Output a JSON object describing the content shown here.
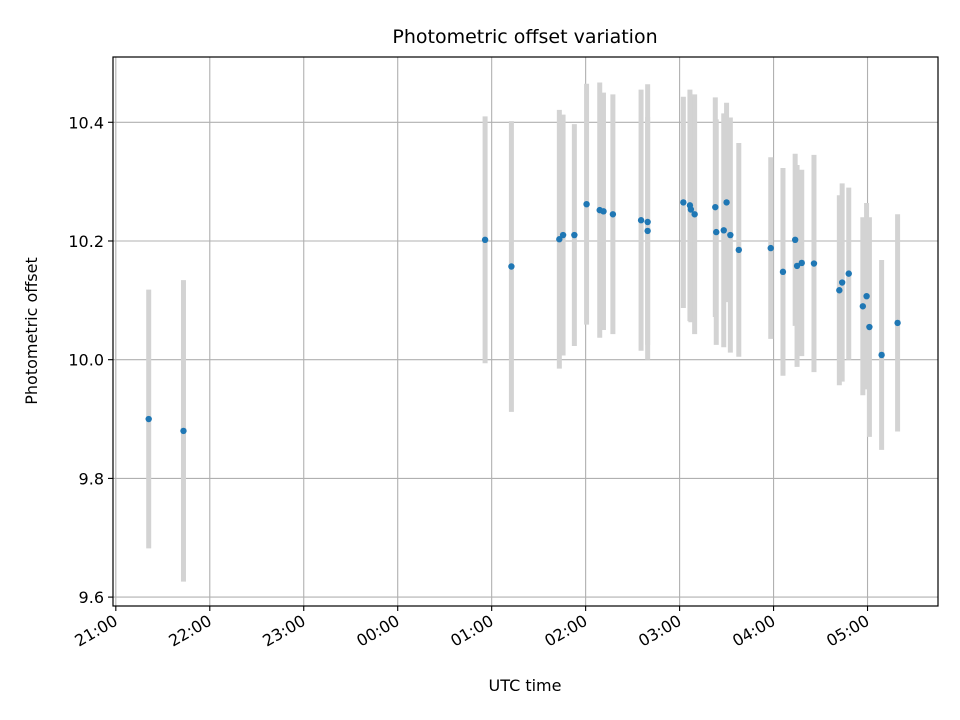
{
  "chart_data": {
    "type": "scatter",
    "title": "Photometric offset variation",
    "xlabel": "UTC time",
    "ylabel": "Photometric offset",
    "x_unit": "UTC hours (21:00 start, values past 24 wrap to next day)",
    "xlim": [
      20.97,
      29.75
    ],
    "ylim": [
      9.585,
      10.51
    ],
    "grid": true,
    "x_ticks": [
      {
        "value": 21,
        "label": "21:00"
      },
      {
        "value": 22,
        "label": "22:00"
      },
      {
        "value": 23,
        "label": "23:00"
      },
      {
        "value": 24,
        "label": "00:00"
      },
      {
        "value": 25,
        "label": "01:00"
      },
      {
        "value": 26,
        "label": "02:00"
      },
      {
        "value": 27,
        "label": "03:00"
      },
      {
        "value": 28,
        "label": "04:00"
      },
      {
        "value": 29,
        "label": "05:00"
      }
    ],
    "y_ticks": [
      {
        "value": 9.6,
        "label": "9.6"
      },
      {
        "value": 9.8,
        "label": "9.8"
      },
      {
        "value": 10.0,
        "label": "10.0"
      },
      {
        "value": 10.2,
        "label": "10.2"
      },
      {
        "value": 10.4,
        "label": "10.4"
      }
    ],
    "colors": {
      "point": "#1f77b4",
      "errorbar": "#d3d3d3",
      "grid": "#b0b0b0"
    },
    "points": [
      {
        "x": 21.35,
        "y": 9.9,
        "err": 0.218
      },
      {
        "x": 21.72,
        "y": 9.88,
        "err": 0.254
      },
      {
        "x": 24.93,
        "y": 10.202,
        "err": 0.208
      },
      {
        "x": 25.21,
        "y": 10.157,
        "err": 0.245
      },
      {
        "x": 25.72,
        "y": 10.203,
        "err": 0.218
      },
      {
        "x": 25.76,
        "y": 10.21,
        "err": 0.203
      },
      {
        "x": 25.88,
        "y": 10.21,
        "err": 0.187
      },
      {
        "x": 26.01,
        "y": 10.262,
        "err": 0.203
      },
      {
        "x": 26.15,
        "y": 10.252,
        "err": 0.215
      },
      {
        "x": 26.19,
        "y": 10.25,
        "err": 0.2
      },
      {
        "x": 26.29,
        "y": 10.245,
        "err": 0.202
      },
      {
        "x": 26.59,
        "y": 10.235,
        "err": 0.22
      },
      {
        "x": 26.66,
        "y": 10.217,
        "err": 0.192
      },
      {
        "x": 26.66,
        "y": 10.232,
        "err": 0.232
      },
      {
        "x": 27.04,
        "y": 10.265,
        "err": 0.178
      },
      {
        "x": 27.11,
        "y": 10.26,
        "err": 0.195
      },
      {
        "x": 27.12,
        "y": 10.253,
        "err": 0.19
      },
      {
        "x": 27.16,
        "y": 10.245,
        "err": 0.202
      },
      {
        "x": 27.38,
        "y": 10.257,
        "err": 0.185
      },
      {
        "x": 27.39,
        "y": 10.215,
        "err": 0.19
      },
      {
        "x": 27.47,
        "y": 10.218,
        "err": 0.197
      },
      {
        "x": 27.5,
        "y": 10.265,
        "err": 0.168
      },
      {
        "x": 27.54,
        "y": 10.21,
        "err": 0.198
      },
      {
        "x": 27.63,
        "y": 10.185,
        "err": 0.18
      },
      {
        "x": 27.97,
        "y": 10.188,
        "err": 0.153
      },
      {
        "x": 28.1,
        "y": 10.148,
        "err": 0.175
      },
      {
        "x": 28.23,
        "y": 10.202,
        "err": 0.145
      },
      {
        "x": 28.25,
        "y": 10.158,
        "err": 0.17
      },
      {
        "x": 28.3,
        "y": 10.163,
        "err": 0.157
      },
      {
        "x": 28.43,
        "y": 10.162,
        "err": 0.183
      },
      {
        "x": 28.7,
        "y": 10.117,
        "err": 0.16
      },
      {
        "x": 28.73,
        "y": 10.13,
        "err": 0.167
      },
      {
        "x": 28.8,
        "y": 10.145,
        "err": 0.145
      },
      {
        "x": 28.95,
        "y": 10.09,
        "err": 0.15
      },
      {
        "x": 28.99,
        "y": 10.107,
        "err": 0.157
      },
      {
        "x": 29.02,
        "y": 10.055,
        "err": 0.185
      },
      {
        "x": 29.15,
        "y": 10.008,
        "err": 0.16
      },
      {
        "x": 29.32,
        "y": 10.062,
        "err": 0.183
      }
    ]
  }
}
